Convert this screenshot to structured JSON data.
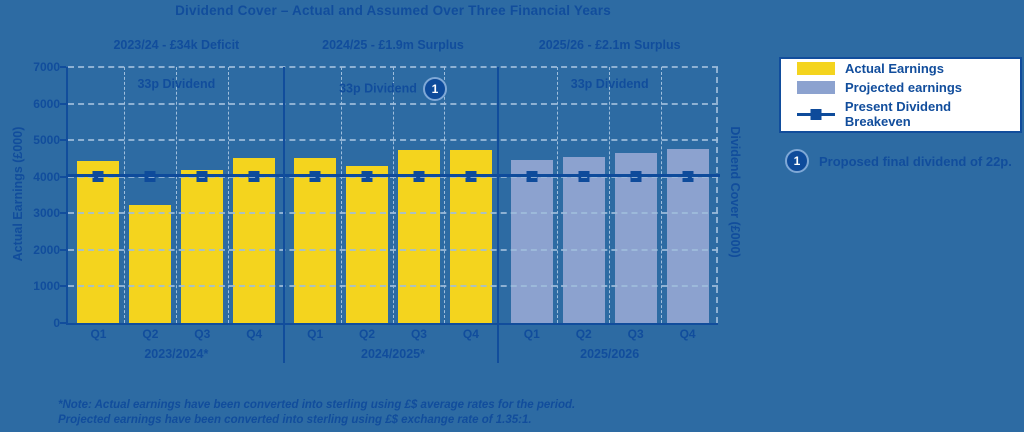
{
  "title": "Dividend Cover – Actual and Assumed Over Three Financial Years",
  "legend": {
    "items": [
      {
        "label": "Actual Earnings",
        "swatch": "actual",
        "color": "#F4D41E"
      },
      {
        "label": "Projected earnings",
        "swatch": "projected",
        "color": "#8CA2CF"
      },
      {
        "label": "Present Dividend Breakeven",
        "swatch": "breakeven",
        "color": "#0E4B9B"
      }
    ]
  },
  "annotation": {
    "marker": "1",
    "text": "Proposed final dividend of 22p."
  },
  "footnote": {
    "line1": "*Note: Actual earnings have been converted into sterling using £$ average rates for the period.",
    "line2": "Projected earnings have been converted into sterling using £$ exchange rate of 1.35:1."
  },
  "colors": {
    "background": "#2D6BA3",
    "accent_dark_blue": "#114D9C",
    "breakeven_navy": "#0E4B9B",
    "actual_yellow": "#F4D41E",
    "projected_blue": "#8CA2CF",
    "gridline_light": "#9FBEDC",
    "legend_background": "#FFFFFF"
  },
  "chart_data": {
    "type": "bar",
    "title": "Dividend Cover – Actual and Assumed Over Three Financial Years",
    "ylabel_left": "Actual Earnings (£000)",
    "ylabel_right": "Dividend Cover (£000)",
    "ylim": [
      0,
      7000
    ],
    "yticks": [
      0,
      1000,
      2000,
      3000,
      4000,
      5000,
      6000,
      7000
    ],
    "grid": "dashed horizontal at each 1000, dashed vertical between quarters",
    "legend_position": "outside right",
    "breakeven_value": 4050,
    "breakeven_label": "Present Dividend Breakeven",
    "categories": [
      "Q1",
      "Q2",
      "Q3",
      "Q4"
    ],
    "panels": [
      {
        "header": "2023/24 - £34k Deficit",
        "inner_label": "33p Dividend",
        "inner_badge": "",
        "year_label": "2023/2024*",
        "series": "actual",
        "values": [
          4430,
          3230,
          4180,
          4500
        ]
      },
      {
        "header": "2024/25 - £1.9m Surplus",
        "inner_label": "33p Dividend",
        "inner_badge": "1",
        "year_label": "2024/2025*",
        "series": "actual",
        "values": [
          4520,
          4300,
          4730,
          4740
        ]
      },
      {
        "header": "2025/26 - £2.1m Surplus",
        "inner_label": "33p Dividend",
        "inner_badge": "",
        "year_label": "2025/2026",
        "series": "projected",
        "values": [
          4450,
          4530,
          4640,
          4760
        ]
      }
    ]
  }
}
